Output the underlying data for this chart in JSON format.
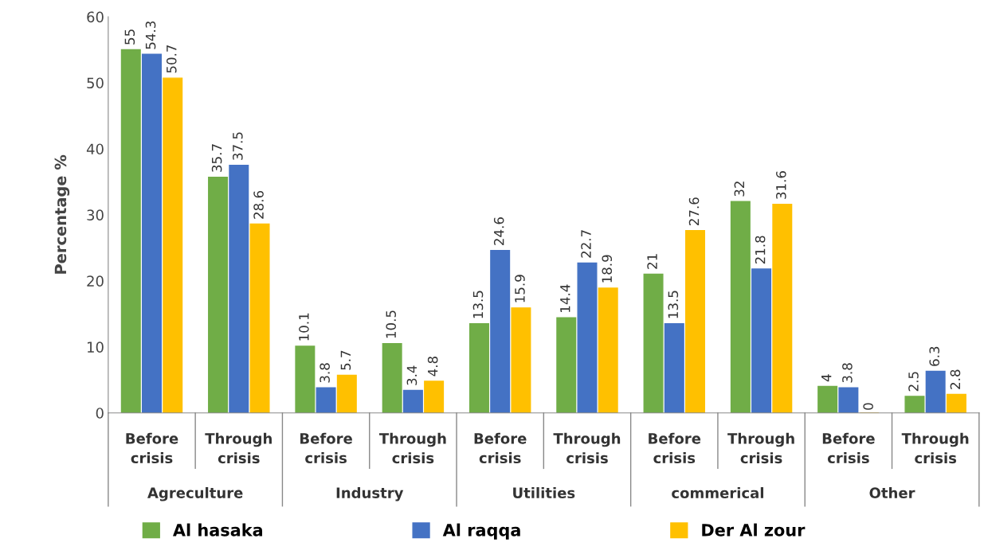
{
  "chart_data": {
    "type": "bar",
    "ylabel": "Percentage %",
    "categories": [
      "Before crisis",
      "Through crisis",
      "Before crisis",
      "Through crisis",
      "Before crisis",
      "Through crisis",
      "Before crisis",
      "Through crisis",
      "Before crisis",
      "Through crisis"
    ],
    "annotations": [
      "Agreculture",
      "Industry",
      "Utilities",
      "commerical",
      "Other"
    ],
    "series": [
      {
        "name": "Al hasaka",
        "color": "#70ad47",
        "values": [
          55,
          35.7,
          10.1,
          10.5,
          13.5,
          14.4,
          21,
          32,
          4,
          2.5
        ]
      },
      {
        "name": "Al raqqa",
        "color": "#4472c4",
        "values": [
          54.3,
          37.5,
          3.8,
          3.4,
          24.6,
          22.7,
          13.5,
          21.8,
          3.8,
          6.3
        ]
      },
      {
        "name": "Der Al zour",
        "color": "#ffc000",
        "values": [
          50.7,
          28.6,
          5.7,
          4.8,
          15.9,
          18.9,
          27.6,
          31.6,
          0,
          2.8
        ]
      }
    ],
    "ylim": [
      0,
      60
    ],
    "yticks": [
      0,
      10,
      20,
      30,
      40,
      50,
      60
    ],
    "data_labels": true,
    "grid": false,
    "legend": "bottom"
  }
}
